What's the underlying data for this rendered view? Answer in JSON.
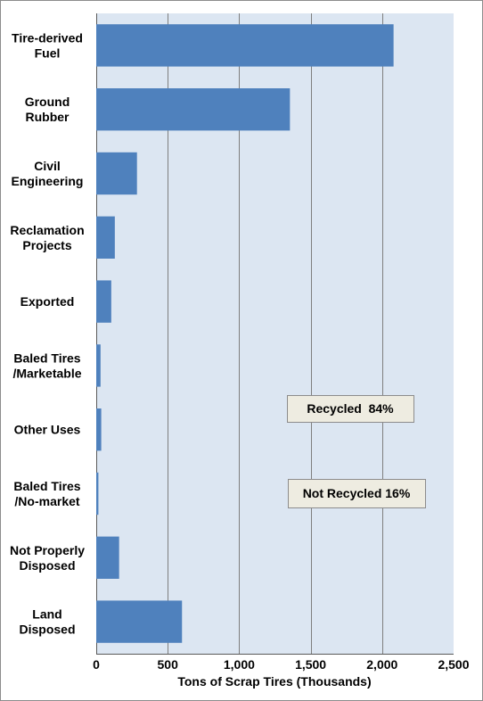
{
  "chart_data": {
    "type": "bar",
    "orientation": "horizontal",
    "categories": [
      [
        "Tire-derived",
        "Fuel"
      ],
      [
        "Ground",
        "Rubber"
      ],
      [
        "Civil",
        "Engineering"
      ],
      [
        "Reclamation",
        "Projects"
      ],
      [
        "Exported"
      ],
      [
        "Baled Tires",
        "/Marketable"
      ],
      [
        "Other Uses"
      ],
      [
        "Baled Tires",
        "/No-market"
      ],
      [
        "Not Properly",
        "Disposed"
      ],
      [
        "Land",
        "Disposed"
      ]
    ],
    "values": [
      2080,
      1355,
      285,
      130,
      105,
      30,
      35,
      15,
      160,
      600
    ],
    "xlabel": "Tons of Scrap Tires (Thousands)",
    "xlim": [
      0,
      2500
    ],
    "xticks": [
      0,
      500,
      1000,
      1500,
      2000,
      2500
    ],
    "xtick_labels": [
      "0",
      "500",
      "1,000",
      "1,500",
      "2,000",
      "2,500"
    ],
    "grid": "vertical",
    "annotations": [
      "Recycled  84%",
      "Not Recycled 16%"
    ],
    "colors": {
      "bar": "#4f81bd",
      "plot_background": "#dce6f2",
      "gridline": "#7f7f7f",
      "callout_fill": "#eeece1"
    }
  }
}
